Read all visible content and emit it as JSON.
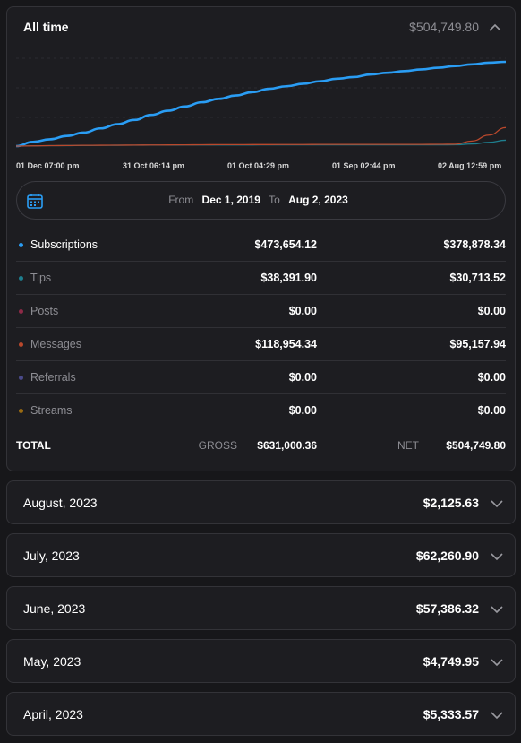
{
  "summary": {
    "title": "All time",
    "total": "$504,749.80"
  },
  "chart_data": {
    "type": "line",
    "x_ticks": [
      "01 Dec 07:00 pm",
      "31 Oct 06:14 pm",
      "01 Oct 04:29 pm",
      "01 Sep 02:44 pm",
      "02 Aug 12:59 pm"
    ],
    "series": [
      {
        "name": "Subscriptions",
        "color": "#2a9df4",
        "values": [
          0,
          5,
          8,
          12,
          16,
          21,
          26,
          31,
          37,
          42,
          47,
          52,
          56,
          60,
          64,
          68,
          71,
          74,
          77,
          80,
          82,
          85,
          87,
          89,
          91,
          93,
          95,
          97,
          99,
          100
        ]
      },
      {
        "name": "Tips",
        "color": "#1e7f8f",
        "values": [
          0,
          0.3,
          0.5,
          0.6,
          0.8,
          0.9,
          1.0,
          1.1,
          1.2,
          1.2,
          1.3,
          1.3,
          1.4,
          1.4,
          1.4,
          1.5,
          1.5,
          1.5,
          1.5,
          1.5,
          1.5,
          1.5,
          1.5,
          1.5,
          1.5,
          1.5,
          1.6,
          2.5,
          4.5,
          7
        ]
      },
      {
        "name": "Messages",
        "color": "#b9482c",
        "values": [
          0,
          0.3,
          0.5,
          0.7,
          0.9,
          1.0,
          1.1,
          1.2,
          1.3,
          1.4,
          1.5,
          1.6,
          1.7,
          1.7,
          1.8,
          1.8,
          1.9,
          1.9,
          2.0,
          2.0,
          2.0,
          2.0,
          2.0,
          2.0,
          2.0,
          2.1,
          2.3,
          6,
          13,
          22
        ]
      }
    ]
  },
  "range": {
    "from_label": "From",
    "from_date": "Dec 1, 2019",
    "to_label": "To",
    "to_date": "Aug 2, 2023"
  },
  "categories": [
    {
      "label": "Subscriptions",
      "color": "#2a9df4",
      "gross": "$473,654.12",
      "net": "$378,878.34",
      "highlight": true
    },
    {
      "label": "Tips",
      "color": "#1e7f8f",
      "gross": "$38,391.90",
      "net": "$30,713.52",
      "highlight": false
    },
    {
      "label": "Posts",
      "color": "#8e2a47",
      "gross": "$0.00",
      "net": "$0.00",
      "highlight": false
    },
    {
      "label": "Messages",
      "color": "#b9482c",
      "gross": "$118,954.34",
      "net": "$95,157.94",
      "highlight": false
    },
    {
      "label": "Referrals",
      "color": "#4a4a8a",
      "gross": "$0.00",
      "net": "$0.00",
      "highlight": false
    },
    {
      "label": "Streams",
      "color": "#9a6b12",
      "gross": "$0.00",
      "net": "$0.00",
      "highlight": false
    }
  ],
  "totals": {
    "label": "TOTAL",
    "gross_label": "GROSS",
    "gross": "$631,000.36",
    "net_label": "NET",
    "net": "$504,749.80"
  },
  "months": [
    {
      "label": "August, 2023",
      "value": "$2,125.63"
    },
    {
      "label": "July, 2023",
      "value": "$62,260.90"
    },
    {
      "label": "June, 2023",
      "value": "$57,386.32"
    },
    {
      "label": "May, 2023",
      "value": "$4,749.95"
    },
    {
      "label": "April, 2023",
      "value": "$5,333.57"
    }
  ]
}
